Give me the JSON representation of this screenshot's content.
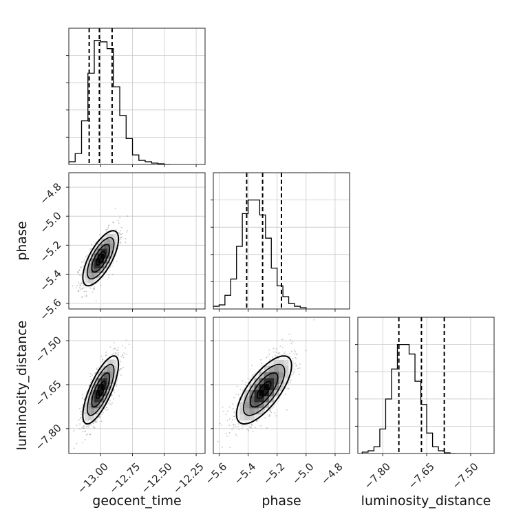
{
  "chart_data": {
    "type": "corner",
    "parameters": [
      "geocent_time",
      "phase",
      "luminosity_distance"
    ],
    "axis_labels": {
      "geocent_time": "geocent_time",
      "phase": "phase",
      "luminosity_distance": "luminosity_distance"
    },
    "ranges": {
      "geocent_time": [
        -13.25,
        -12.18
      ],
      "phase": [
        -5.64,
        -4.7
      ],
      "luminosity_distance": [
        -7.885,
        -7.42
      ]
    },
    "ticks": {
      "geocent_time": [
        {
          "v": -13.0,
          "label": "−13.00"
        },
        {
          "v": -12.75,
          "label": "−12.75"
        },
        {
          "v": -12.5,
          "label": "−12.50"
        },
        {
          "v": -12.25,
          "label": "−12.25"
        }
      ],
      "phase": [
        {
          "v": -5.6,
          "label": "−5.6"
        },
        {
          "v": -5.4,
          "label": "−5.4"
        },
        {
          "v": -5.2,
          "label": "−5.2"
        },
        {
          "v": -5.0,
          "label": "−5.0"
        },
        {
          "v": -4.8,
          "label": "−4.8"
        }
      ],
      "luminosity_distance": [
        {
          "v": -7.8,
          "label": "−7.80"
        },
        {
          "v": -7.65,
          "label": "−7.65"
        },
        {
          "v": -7.5,
          "label": "−7.50"
        }
      ]
    },
    "quantiles": {
      "geocent_time": [
        -13.09,
        -13.01,
        -12.91
      ],
      "phase": [
        -5.41,
        -5.3,
        -5.17
      ],
      "luminosity_distance": [
        -7.745,
        -7.668,
        -7.59
      ]
    },
    "histograms": {
      "geocent_time": {
        "start": -13.25,
        "width": 0.05,
        "counts": [
          0.02,
          0.08,
          0.32,
          0.67,
          0.91,
          0.9,
          0.85,
          0.57,
          0.36,
          0.19,
          0.07,
          0.03,
          0.02,
          0.01,
          0.005,
          0.0
        ]
      },
      "phase": {
        "start": -5.64,
        "width": 0.04,
        "counts": [
          0.02,
          0.03,
          0.1,
          0.22,
          0.46,
          0.7,
          0.8,
          0.8,
          0.69,
          0.52,
          0.3,
          0.17,
          0.09,
          0.04,
          0.02,
          0.01
        ]
      },
      "luminosity_distance": {
        "start": -7.87,
        "width": 0.02,
        "counts": [
          0.01,
          0.02,
          0.05,
          0.18,
          0.4,
          0.62,
          0.8,
          0.8,
          0.73,
          0.53,
          0.36,
          0.15,
          0.05,
          0.02,
          0.005,
          0.0
        ]
      }
    },
    "joint": {
      "means": {
        "geocent_time": -13.0,
        "phase": -5.29,
        "luminosity_distance": -7.668
      },
      "stds": {
        "geocent_time": 0.07,
        "phase": 0.095,
        "luminosity_distance": 0.058
      },
      "correlations": {
        "phase|geocent_time": 0.7,
        "luminosity_distance|geocent_time": 0.75,
        "luminosity_distance|phase": 0.72
      }
    },
    "contour_levels_sigma": [
      0.5,
      1.0,
      1.5,
      2.0
    ],
    "grid": true
  }
}
